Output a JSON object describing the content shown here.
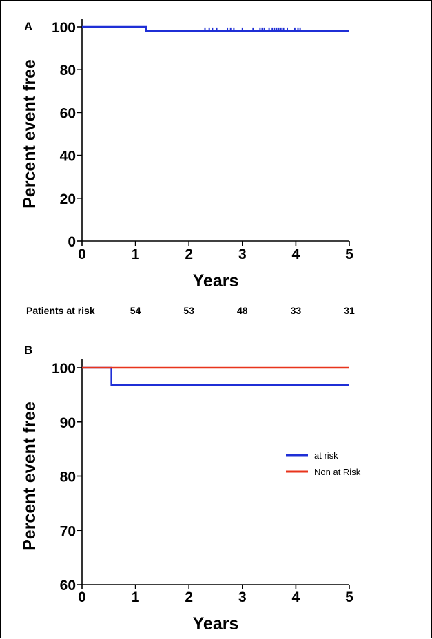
{
  "colors": {
    "at_risk": "#1f2fd6",
    "non_at_risk": "#e8341c"
  },
  "chart_data": [
    {
      "panel": "A",
      "type": "line",
      "step": true,
      "xlabel": "Years",
      "ylabel": "Percent event free",
      "xlim": [
        0,
        5
      ],
      "ylim": [
        0,
        100
      ],
      "x_ticks": [
        "0",
        "1",
        "2",
        "3",
        "4",
        "5"
      ],
      "y_ticks": [
        "0",
        "20",
        "40",
        "60",
        "80",
        "100"
      ],
      "series": [
        {
          "color_key": "at_risk",
          "points": [
            [
              0,
              100
            ],
            [
              1.2,
              100
            ],
            [
              1.2,
              98.1
            ],
            [
              5,
              98.1
            ]
          ],
          "censor_x": [
            2.3,
            2.38,
            2.44,
            2.52,
            2.72,
            2.78,
            2.84,
            3.0,
            3.2,
            3.33,
            3.37,
            3.41,
            3.5,
            3.56,
            3.6,
            3.64,
            3.68,
            3.72,
            3.77,
            3.84,
            3.98,
            4.04,
            4.08
          ],
          "censor_y": 98.1
        }
      ],
      "risk_table": {
        "label": "Patients at risk",
        "values": [
          {
            "x": 1,
            "count": "54"
          },
          {
            "x": 2,
            "count": "53"
          },
          {
            "x": 3,
            "count": "48"
          },
          {
            "x": 4,
            "count": "33"
          },
          {
            "x": 5,
            "count": "31"
          }
        ]
      }
    },
    {
      "panel": "B",
      "type": "line",
      "step": true,
      "xlabel": "Years",
      "ylabel": "Percent event free",
      "xlim": [
        0,
        5
      ],
      "ylim": [
        60,
        100
      ],
      "x_ticks": [
        "0",
        "1",
        "2",
        "3",
        "4",
        "5"
      ],
      "y_ticks": [
        "60",
        "70",
        "80",
        "90",
        "100"
      ],
      "legend_position": "center-right",
      "series": [
        {
          "name": "at risk",
          "color_key": "at_risk",
          "points": [
            [
              0,
              100
            ],
            [
              0.55,
              100
            ],
            [
              0.55,
              96.8
            ],
            [
              5,
              96.8
            ]
          ]
        },
        {
          "name": "Non at Risk",
          "color_key": "non_at_risk",
          "points": [
            [
              0,
              100
            ],
            [
              5,
              100
            ]
          ]
        }
      ]
    }
  ]
}
